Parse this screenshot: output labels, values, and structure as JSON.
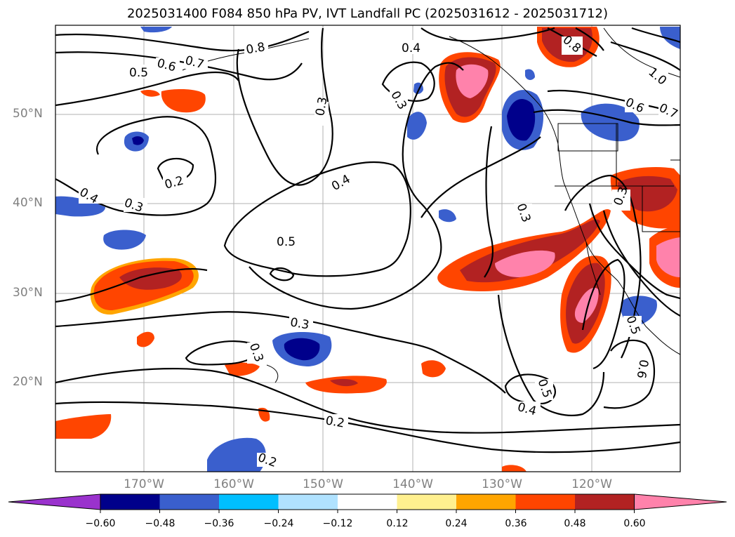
{
  "title": "2025031400 F084 850 hPa PV, IVT Landfall PC (2025031612 - 2025031712)",
  "lat_labels": [
    "50°N",
    "40°N",
    "30°N",
    "20°N"
  ],
  "lon_labels": [
    "170°W",
    "160°W",
    "150°W",
    "140°W",
    "130°W",
    "120°W"
  ],
  "contour_labels": [
    "0.4",
    "0.5",
    "0.6",
    "0.7",
    "0.8",
    "0.3",
    "0.3",
    "0.2",
    "0.4",
    "0.3",
    "0.4",
    "0.5",
    "0.3",
    "0.3",
    "0.3",
    "0.3",
    "0.2",
    "0.2",
    "0.5",
    "0.4",
    "0.5",
    "0.6",
    "1.0",
    "0.6",
    "0.7",
    "0.8",
    "0.3",
    "0.4"
  ],
  "colorbar": {
    "ticks": [
      "−0.60",
      "−0.48",
      "−0.36",
      "−0.24",
      "−0.12",
      "0.12",
      "0.24",
      "0.36",
      "0.48",
      "0.60"
    ],
    "colors": [
      "#9a32cd",
      "#00008b",
      "#3a5fcd",
      "#00bfff",
      "#b0e2ff",
      "#ffffff",
      "#fff08f",
      "#ffa500",
      "#ff4500",
      "#b22222",
      "#ff82ab"
    ]
  }
}
